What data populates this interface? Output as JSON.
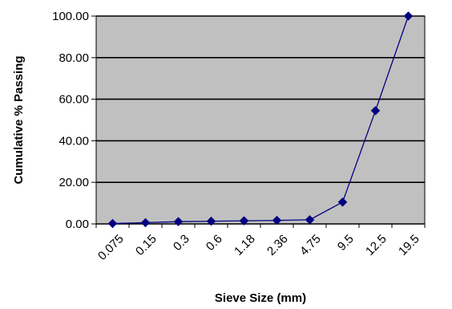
{
  "chart_data": {
    "type": "line",
    "title": "",
    "xlabel": "Sieve Size (mm)",
    "ylabel": "Cumulative % Passing",
    "categories": [
      "0.075",
      "0.15",
      "0.3",
      "0.6",
      "1.18",
      "2.36",
      "4.75",
      "9.5",
      "12.5",
      "19.5"
    ],
    "yticks": [
      "0.00",
      "20.00",
      "40.00",
      "60.00",
      "80.00",
      "100.00"
    ],
    "ylim": [
      0,
      100
    ],
    "grid": true,
    "legend": "none",
    "marker": "diamond",
    "series": [
      {
        "values": [
          0.2,
          0.6,
          1.1,
          1.3,
          1.5,
          1.7,
          2.0,
          10.5,
          54.5,
          100.0
        ]
      }
    ],
    "colors": {
      "plot_background": "#c0c0c0",
      "series": "#000080",
      "gridline": "#000000",
      "axis": "#000000"
    }
  }
}
